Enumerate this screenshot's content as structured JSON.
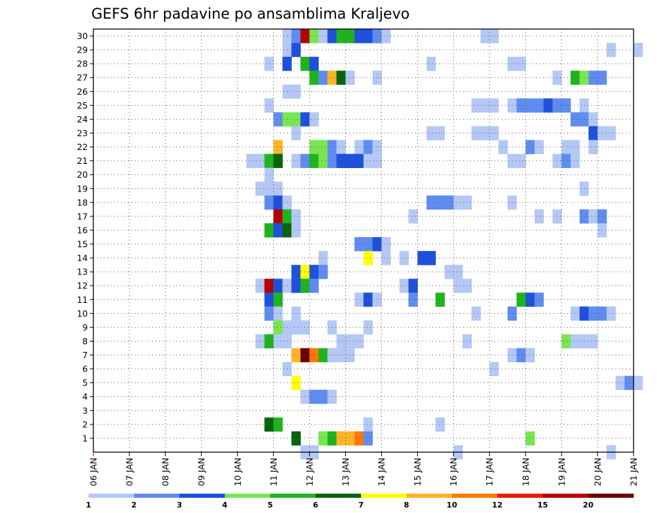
{
  "chart_data": {
    "type": "heatmap",
    "title": "GEFS 6hr padavine po ansamblima Kraljevo",
    "xlabel": "",
    "ylabel": "",
    "x_tick_labels": [
      "06 JAN",
      "07 JAN",
      "08 JAN",
      "09 JAN",
      "10 JAN",
      "11 JAN",
      "12 JAN",
      "13 JAN",
      "14 JAN",
      "15 JAN",
      "16 JAN",
      "17 JAN",
      "18 JAN",
      "19 JAN",
      "20 JAN",
      "21 JAN"
    ],
    "x_unit": "6-hour step (4 steps per day), step 0 = 06 JAN 00Z",
    "y_tick_labels": [
      "1",
      "2",
      "3",
      "4",
      "5",
      "6",
      "7",
      "8",
      "9",
      "10",
      "11",
      "12",
      "13",
      "14",
      "15",
      "16",
      "17",
      "18",
      "19",
      "20",
      "21",
      "22",
      "23",
      "24",
      "25",
      "26",
      "27",
      "28",
      "29",
      "30"
    ],
    "y_range": [
      0,
      30
    ],
    "grid": true,
    "colorbar": {
      "position": "bottom",
      "colors": [
        "#b4c8f5",
        "#5f8cf0",
        "#1e50dc",
        "#78e650",
        "#1eb41e",
        "#0a640a",
        "#ffff00",
        "#ffb428",
        "#ff7800",
        "#e61e0a",
        "#b40000",
        "#6e0000"
      ],
      "tick_labels": [
        "1",
        "2",
        "3",
        "4",
        "5",
        "6",
        "7",
        "8",
        "10",
        "12",
        "15",
        "20"
      ]
    },
    "cells": [
      {
        "member": 30,
        "step": 21,
        "level": 1
      },
      {
        "member": 30,
        "step": 22,
        "level": 2
      },
      {
        "member": 30,
        "step": 23,
        "level": 11
      },
      {
        "member": 30,
        "step": 24,
        "level": 4
      },
      {
        "member": 30,
        "step": 25,
        "level": 1
      },
      {
        "member": 30,
        "step": 26,
        "level": 3
      },
      {
        "member": 30,
        "step": 27,
        "level": 5
      },
      {
        "member": 30,
        "step": 28,
        "level": 5
      },
      {
        "member": 30,
        "step": 29,
        "level": 3
      },
      {
        "member": 30,
        "step": 30,
        "level": 3
      },
      {
        "member": 30,
        "step": 31,
        "level": 2
      },
      {
        "member": 30,
        "step": 32,
        "level": 1
      },
      {
        "member": 30,
        "step": 43,
        "level": 1
      },
      {
        "member": 30,
        "step": 44,
        "level": 1
      },
      {
        "member": 29,
        "step": 21,
        "level": 1
      },
      {
        "member": 29,
        "step": 22,
        "level": 3
      },
      {
        "member": 29,
        "step": 57,
        "level": 1
      },
      {
        "member": 29,
        "step": 60,
        "level": 1
      },
      {
        "member": 28,
        "step": 19,
        "level": 1
      },
      {
        "member": 28,
        "step": 21,
        "level": 3
      },
      {
        "member": 28,
        "step": 23,
        "level": 5
      },
      {
        "member": 28,
        "step": 24,
        "level": 3
      },
      {
        "member": 28,
        "step": 37,
        "level": 1
      },
      {
        "member": 28,
        "step": 46,
        "level": 1
      },
      {
        "member": 28,
        "step": 47,
        "level": 1
      },
      {
        "member": 27,
        "step": 24,
        "level": 5
      },
      {
        "member": 27,
        "step": 25,
        "level": 2
      },
      {
        "member": 27,
        "step": 26,
        "level": 8
      },
      {
        "member": 27,
        "step": 27,
        "level": 6
      },
      {
        "member": 27,
        "step": 28,
        "level": 1
      },
      {
        "member": 27,
        "step": 31,
        "level": 1
      },
      {
        "member": 27,
        "step": 51,
        "level": 1
      },
      {
        "member": 27,
        "step": 53,
        "level": 5
      },
      {
        "member": 27,
        "step": 54,
        "level": 4
      },
      {
        "member": 27,
        "step": 55,
        "level": 2
      },
      {
        "member": 27,
        "step": 56,
        "level": 2
      },
      {
        "member": 26,
        "step": 21,
        "level": 1
      },
      {
        "member": 26,
        "step": 22,
        "level": 1
      },
      {
        "member": 25,
        "step": 19,
        "level": 1
      },
      {
        "member": 25,
        "step": 42,
        "level": 1
      },
      {
        "member": 25,
        "step": 43,
        "level": 1
      },
      {
        "member": 25,
        "step": 44,
        "level": 1
      },
      {
        "member": 25,
        "step": 46,
        "level": 1
      },
      {
        "member": 25,
        "step": 47,
        "level": 2
      },
      {
        "member": 25,
        "step": 48,
        "level": 2
      },
      {
        "member": 25,
        "step": 49,
        "level": 2
      },
      {
        "member": 25,
        "step": 50,
        "level": 3
      },
      {
        "member": 25,
        "step": 51,
        "level": 2
      },
      {
        "member": 25,
        "step": 52,
        "level": 2
      },
      {
        "member": 25,
        "step": 54,
        "level": 1
      },
      {
        "member": 24,
        "step": 20,
        "level": 2
      },
      {
        "member": 24,
        "step": 21,
        "level": 4
      },
      {
        "member": 24,
        "step": 22,
        "level": 4
      },
      {
        "member": 24,
        "step": 23,
        "level": 3
      },
      {
        "member": 24,
        "step": 24,
        "level": 1
      },
      {
        "member": 24,
        "step": 53,
        "level": 2
      },
      {
        "member": 24,
        "step": 54,
        "level": 2
      },
      {
        "member": 24,
        "step": 55,
        "level": 1
      },
      {
        "member": 23,
        "step": 22,
        "level": 1
      },
      {
        "member": 23,
        "step": 37,
        "level": 1
      },
      {
        "member": 23,
        "step": 38,
        "level": 1
      },
      {
        "member": 23,
        "step": 42,
        "level": 1
      },
      {
        "member": 23,
        "step": 43,
        "level": 1
      },
      {
        "member": 23,
        "step": 44,
        "level": 1
      },
      {
        "member": 23,
        "step": 55,
        "level": 3
      },
      {
        "member": 23,
        "step": 56,
        "level": 1
      },
      {
        "member": 23,
        "step": 57,
        "level": 1
      },
      {
        "member": 22,
        "step": 20,
        "level": 8
      },
      {
        "member": 22,
        "step": 24,
        "level": 4
      },
      {
        "member": 22,
        "step": 25,
        "level": 4
      },
      {
        "member": 22,
        "step": 26,
        "level": 2
      },
      {
        "member": 22,
        "step": 27,
        "level": 1
      },
      {
        "member": 22,
        "step": 29,
        "level": 1
      },
      {
        "member": 22,
        "step": 30,
        "level": 2
      },
      {
        "member": 22,
        "step": 31,
        "level": 1
      },
      {
        "member": 22,
        "step": 45,
        "level": 1
      },
      {
        "member": 22,
        "step": 48,
        "level": 2
      },
      {
        "member": 22,
        "step": 49,
        "level": 1
      },
      {
        "member": 22,
        "step": 52,
        "level": 1
      },
      {
        "member": 22,
        "step": 53,
        "level": 1
      },
      {
        "member": 22,
        "step": 55,
        "level": 1
      },
      {
        "member": 21,
        "step": 17,
        "level": 1
      },
      {
        "member": 21,
        "step": 18,
        "level": 1
      },
      {
        "member": 21,
        "step": 19,
        "level": 5
      },
      {
        "member": 21,
        "step": 20,
        "level": 6
      },
      {
        "member": 21,
        "step": 22,
        "level": 1
      },
      {
        "member": 21,
        "step": 23,
        "level": 2
      },
      {
        "member": 21,
        "step": 24,
        "level": 5
      },
      {
        "member": 21,
        "step": 25,
        "level": 4
      },
      {
        "member": 21,
        "step": 26,
        "level": 2
      },
      {
        "member": 21,
        "step": 27,
        "level": 3
      },
      {
        "member": 21,
        "step": 28,
        "level": 3
      },
      {
        "member": 21,
        "step": 29,
        "level": 3
      },
      {
        "member": 21,
        "step": 30,
        "level": 1
      },
      {
        "member": 21,
        "step": 31,
        "level": 1
      },
      {
        "member": 21,
        "step": 46,
        "level": 1
      },
      {
        "member": 21,
        "step": 47,
        "level": 1
      },
      {
        "member": 21,
        "step": 51,
        "level": 1
      },
      {
        "member": 21,
        "step": 52,
        "level": 2
      },
      {
        "member": 21,
        "step": 53,
        "level": 1
      },
      {
        "member": 20,
        "step": 19,
        "level": 1
      },
      {
        "member": 19,
        "step": 18,
        "level": 1
      },
      {
        "member": 19,
        "step": 19,
        "level": 1
      },
      {
        "member": 19,
        "step": 20,
        "level": 1
      },
      {
        "member": 19,
        "step": 54,
        "level": 1
      },
      {
        "member": 18,
        "step": 19,
        "level": 2
      },
      {
        "member": 18,
        "step": 20,
        "level": 3
      },
      {
        "member": 18,
        "step": 21,
        "level": 1
      },
      {
        "member": 18,
        "step": 37,
        "level": 2
      },
      {
        "member": 18,
        "step": 38,
        "level": 2
      },
      {
        "member": 18,
        "step": 39,
        "level": 2
      },
      {
        "member": 18,
        "step": 40,
        "level": 1
      },
      {
        "member": 18,
        "step": 41,
        "level": 1
      },
      {
        "member": 18,
        "step": 46,
        "level": 1
      },
      {
        "member": 17,
        "step": 20,
        "level": 11
      },
      {
        "member": 17,
        "step": 21,
        "level": 5
      },
      {
        "member": 17,
        "step": 22,
        "level": 1
      },
      {
        "member": 17,
        "step": 35,
        "level": 1
      },
      {
        "member": 17,
        "step": 49,
        "level": 1
      },
      {
        "member": 17,
        "step": 51,
        "level": 1
      },
      {
        "member": 17,
        "step": 54,
        "level": 2
      },
      {
        "member": 17,
        "step": 55,
        "level": 1
      },
      {
        "member": 17,
        "step": 56,
        "level": 2
      },
      {
        "member": 16,
        "step": 19,
        "level": 5
      },
      {
        "member": 16,
        "step": 20,
        "level": 3
      },
      {
        "member": 16,
        "step": 21,
        "level": 6
      },
      {
        "member": 16,
        "step": 22,
        "level": 1
      },
      {
        "member": 16,
        "step": 56,
        "level": 1
      },
      {
        "member": 15,
        "step": 29,
        "level": 2
      },
      {
        "member": 15,
        "step": 30,
        "level": 2
      },
      {
        "member": 15,
        "step": 31,
        "level": 3
      },
      {
        "member": 15,
        "step": 32,
        "level": 1
      },
      {
        "member": 14,
        "step": 25,
        "level": 1
      },
      {
        "member": 14,
        "step": 30,
        "level": 7
      },
      {
        "member": 14,
        "step": 32,
        "level": 1
      },
      {
        "member": 14,
        "step": 34,
        "level": 1
      },
      {
        "member": 14,
        "step": 36,
        "level": 3
      },
      {
        "member": 14,
        "step": 37,
        "level": 3
      },
      {
        "member": 13,
        "step": 22,
        "level": 3
      },
      {
        "member": 13,
        "step": 23,
        "level": 7
      },
      {
        "member": 13,
        "step": 24,
        "level": 3
      },
      {
        "member": 13,
        "step": 25,
        "level": 2
      },
      {
        "member": 13,
        "step": 39,
        "level": 1
      },
      {
        "member": 13,
        "step": 40,
        "level": 1
      },
      {
        "member": 12,
        "step": 18,
        "level": 1
      },
      {
        "member": 12,
        "step": 19,
        "level": 11
      },
      {
        "member": 12,
        "step": 20,
        "level": 3
      },
      {
        "member": 12,
        "step": 21,
        "level": 1
      },
      {
        "member": 12,
        "step": 22,
        "level": 3
      },
      {
        "member": 12,
        "step": 23,
        "level": 5
      },
      {
        "member": 12,
        "step": 24,
        "level": 2
      },
      {
        "member": 12,
        "step": 34,
        "level": 1
      },
      {
        "member": 12,
        "step": 35,
        "level": 3
      },
      {
        "member": 12,
        "step": 40,
        "level": 1
      },
      {
        "member": 12,
        "step": 41,
        "level": 1
      },
      {
        "member": 11,
        "step": 19,
        "level": 3
      },
      {
        "member": 11,
        "step": 20,
        "level": 5
      },
      {
        "member": 11,
        "step": 29,
        "level": 1
      },
      {
        "member": 11,
        "step": 30,
        "level": 3
      },
      {
        "member": 11,
        "step": 31,
        "level": 1
      },
      {
        "member": 11,
        "step": 35,
        "level": 2
      },
      {
        "member": 11,
        "step": 38,
        "level": 5
      },
      {
        "member": 11,
        "step": 47,
        "level": 5
      },
      {
        "member": 11,
        "step": 48,
        "level": 3
      },
      {
        "member": 11,
        "step": 49,
        "level": 2
      },
      {
        "member": 10,
        "step": 19,
        "level": 2
      },
      {
        "member": 10,
        "step": 20,
        "level": 1
      },
      {
        "member": 10,
        "step": 22,
        "level": 1
      },
      {
        "member": 10,
        "step": 42,
        "level": 1
      },
      {
        "member": 10,
        "step": 46,
        "level": 2
      },
      {
        "member": 10,
        "step": 53,
        "level": 1
      },
      {
        "member": 10,
        "step": 54,
        "level": 3
      },
      {
        "member": 10,
        "step": 55,
        "level": 2
      },
      {
        "member": 10,
        "step": 56,
        "level": 2
      },
      {
        "member": 10,
        "step": 57,
        "level": 1
      },
      {
        "member": 9,
        "step": 20,
        "level": 4
      },
      {
        "member": 9,
        "step": 21,
        "level": 1
      },
      {
        "member": 9,
        "step": 22,
        "level": 1
      },
      {
        "member": 9,
        "step": 23,
        "level": 1
      },
      {
        "member": 9,
        "step": 26,
        "level": 1
      },
      {
        "member": 9,
        "step": 30,
        "level": 1
      },
      {
        "member": 8,
        "step": 18,
        "level": 1
      },
      {
        "member": 8,
        "step": 19,
        "level": 5
      },
      {
        "member": 8,
        "step": 20,
        "level": 1
      },
      {
        "member": 8,
        "step": 21,
        "level": 1
      },
      {
        "member": 8,
        "step": 27,
        "level": 1
      },
      {
        "member": 8,
        "step": 28,
        "level": 1
      },
      {
        "member": 8,
        "step": 29,
        "level": 1
      },
      {
        "member": 8,
        "step": 41,
        "level": 1
      },
      {
        "member": 8,
        "step": 52,
        "level": 4
      },
      {
        "member": 8,
        "step": 53,
        "level": 1
      },
      {
        "member": 8,
        "step": 54,
        "level": 1
      },
      {
        "member": 8,
        "step": 55,
        "level": 1
      },
      {
        "member": 7,
        "step": 22,
        "level": 8
      },
      {
        "member": 7,
        "step": 23,
        "level": 12
      },
      {
        "member": 7,
        "step": 24,
        "level": 9
      },
      {
        "member": 7,
        "step": 25,
        "level": 5
      },
      {
        "member": 7,
        "step": 26,
        "level": 1
      },
      {
        "member": 7,
        "step": 27,
        "level": 1
      },
      {
        "member": 7,
        "step": 28,
        "level": 1
      },
      {
        "member": 7,
        "step": 46,
        "level": 1
      },
      {
        "member": 7,
        "step": 47,
        "level": 2
      },
      {
        "member": 7,
        "step": 48,
        "level": 1
      },
      {
        "member": 6,
        "step": 21,
        "level": 1
      },
      {
        "member": 6,
        "step": 44,
        "level": 1
      },
      {
        "member": 5,
        "step": 22,
        "level": 7
      },
      {
        "member": 5,
        "step": 58,
        "level": 1
      },
      {
        "member": 5,
        "step": 59,
        "level": 2
      },
      {
        "member": 5,
        "step": 60,
        "level": 1
      },
      {
        "member": 4,
        "step": 23,
        "level": 1
      },
      {
        "member": 4,
        "step": 24,
        "level": 2
      },
      {
        "member": 4,
        "step": 25,
        "level": 2
      },
      {
        "member": 4,
        "step": 26,
        "level": 1
      },
      {
        "member": 2,
        "step": 19,
        "level": 6
      },
      {
        "member": 2,
        "step": 20,
        "level": 5
      },
      {
        "member": 2,
        "step": 30,
        "level": 1
      },
      {
        "member": 2,
        "step": 38,
        "level": 1
      },
      {
        "member": 1,
        "step": 22,
        "level": 6
      },
      {
        "member": 1,
        "step": 25,
        "level": 4
      },
      {
        "member": 1,
        "step": 26,
        "level": 5
      },
      {
        "member": 1,
        "step": 27,
        "level": 8
      },
      {
        "member": 1,
        "step": 28,
        "level": 8
      },
      {
        "member": 1,
        "step": 29,
        "level": 9
      },
      {
        "member": 1,
        "step": 30,
        "level": 2
      },
      {
        "member": 1,
        "step": 48,
        "level": 4
      },
      {
        "member": 0,
        "step": 23,
        "level": 1
      },
      {
        "member": 0,
        "step": 24,
        "level": 1
      },
      {
        "member": 0,
        "step": 40,
        "level": 1
      },
      {
        "member": 0,
        "step": 57,
        "level": 1
      }
    ]
  }
}
